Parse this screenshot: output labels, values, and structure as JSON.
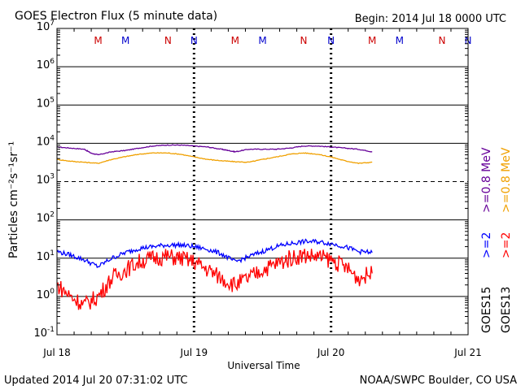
{
  "header": {
    "title": "GOES Electron Flux (5 minute data)",
    "begin": "Begin: 2014 Jul 18 0000 UTC"
  },
  "footer": {
    "updated": "Updated 2014 Jul 20 07:31:02 UTC",
    "credit": "NOAA/SWPC Boulder, CO USA"
  },
  "colors": {
    "goes15_2mev": "#0000ff",
    "goes13_2mev": "#ff0000",
    "goes15_08mev": "#660099",
    "goes13_08mev": "#f0a000",
    "marker_m": "#cc0000",
    "marker_n_red": "#cc0000",
    "marker_n_blue": "#0000cc"
  },
  "legend": {
    "goes15_label": "GOES15",
    "goes13_label": "GOES13",
    "label_2mev_15": ">=2",
    "label_2mev_13": ">=2",
    "label_08mev_15": ">=0.8  MeV",
    "label_08mev_13": ">=0.8  MeV"
  },
  "chart_data": {
    "type": "line",
    "title": "GOES Electron Flux (5 minute data)",
    "xlabel": "Universal Time",
    "ylabel": "Particles cm⁻²s⁻¹sr⁻¹",
    "y_scale": "log",
    "ylim": [
      0.1,
      10000000
    ],
    "xlim": [
      "2014-07-18",
      "2014-07-21"
    ],
    "x_ticks": [
      "Jul 18",
      "Jul 19",
      "Jul 20",
      "Jul 21"
    ],
    "y_tick_exponents": [
      -1,
      0,
      1,
      2,
      3,
      4,
      5,
      6,
      7
    ],
    "threshold_line": 1000,
    "grid": true,
    "markers": [
      {
        "label": "M",
        "day": 0.3,
        "color": "marker_m"
      },
      {
        "label": "M",
        "day": 0.5,
        "color": "marker_n_blue"
      },
      {
        "label": "N",
        "day": 0.81,
        "color": "marker_n_red"
      },
      {
        "label": "N",
        "day": 1.0,
        "color": "marker_n_blue"
      },
      {
        "label": "M",
        "day": 1.3,
        "color": "marker_m"
      },
      {
        "label": "M",
        "day": 1.5,
        "color": "marker_n_blue"
      },
      {
        "label": "N",
        "day": 1.8,
        "color": "marker_n_red"
      },
      {
        "label": "N",
        "day": 2.0,
        "color": "marker_n_blue"
      },
      {
        "label": "M",
        "day": 2.3,
        "color": "marker_m"
      },
      {
        "label": "M",
        "day": 2.5,
        "color": "marker_n_blue"
      },
      {
        "label": "N",
        "day": 2.81,
        "color": "marker_n_red"
      },
      {
        "label": "N",
        "day": 3.0,
        "color": "marker_n_blue"
      }
    ],
    "series": [
      {
        "name": "GOES15 >=0.8 MeV",
        "color": "goes15_08mev",
        "x": [
          0,
          0.1,
          0.2,
          0.25,
          0.3,
          0.4,
          0.5,
          0.6,
          0.7,
          0.8,
          0.9,
          1.0,
          1.1,
          1.2,
          1.25,
          1.3,
          1.4,
          1.5,
          1.6,
          1.7,
          1.8,
          1.9,
          2.0,
          2.1,
          2.2,
          2.3
        ],
        "y": [
          8000,
          7500,
          7000,
          5500,
          5000,
          6000,
          6500,
          7500,
          8500,
          9000,
          9000,
          8500,
          8000,
          7000,
          6500,
          6000,
          7000,
          7000,
          7000,
          7500,
          8500,
          8500,
          8000,
          7500,
          7000,
          6000
        ]
      },
      {
        "name": "GOES13 >=0.8 MeV",
        "color": "goes13_08mev",
        "x": [
          0,
          0.1,
          0.2,
          0.3,
          0.4,
          0.5,
          0.6,
          0.7,
          0.8,
          0.9,
          1.0,
          1.1,
          1.2,
          1.3,
          1.4,
          1.5,
          1.6,
          1.7,
          1.8,
          1.9,
          2.0,
          2.1,
          2.2,
          2.3
        ],
        "y": [
          3800,
          3400,
          3200,
          3000,
          3800,
          4500,
          5200,
          5600,
          5600,
          5200,
          4400,
          3800,
          3500,
          3300,
          3200,
          3800,
          4400,
          5200,
          5600,
          5200,
          4400,
          3500,
          3000,
          3200
        ]
      },
      {
        "name": "GOES15 >=2 MeV",
        "color": "goes15_2mev",
        "x": [
          0,
          0.1,
          0.2,
          0.3,
          0.4,
          0.5,
          0.6,
          0.7,
          0.8,
          0.9,
          1.0,
          1.1,
          1.2,
          1.3,
          1.4,
          1.5,
          1.6,
          1.7,
          1.8,
          1.9,
          2.0,
          2.1,
          2.2,
          2.3
        ],
        "y": [
          15,
          12,
          9,
          6,
          10,
          14,
          18,
          20,
          22,
          22,
          20,
          17,
          13,
          8,
          11,
          15,
          20,
          24,
          27,
          27,
          24,
          20,
          15,
          14
        ]
      },
      {
        "name": "GOES13 >=2 MeV",
        "color": "goes13_2mev",
        "x": [
          0,
          0.1,
          0.2,
          0.3,
          0.4,
          0.5,
          0.6,
          0.7,
          0.8,
          0.9,
          1.0,
          1.1,
          1.2,
          1.3,
          1.4,
          1.5,
          1.6,
          1.7,
          1.8,
          1.9,
          2.0,
          2.1,
          2.2,
          2.3
        ],
        "y": [
          2,
          1,
          0.6,
          1,
          3,
          5,
          8,
          10,
          11,
          10,
          8,
          5,
          3,
          2,
          3,
          5,
          7,
          10,
          12,
          11,
          9,
          6,
          3,
          4
        ]
      }
    ]
  }
}
